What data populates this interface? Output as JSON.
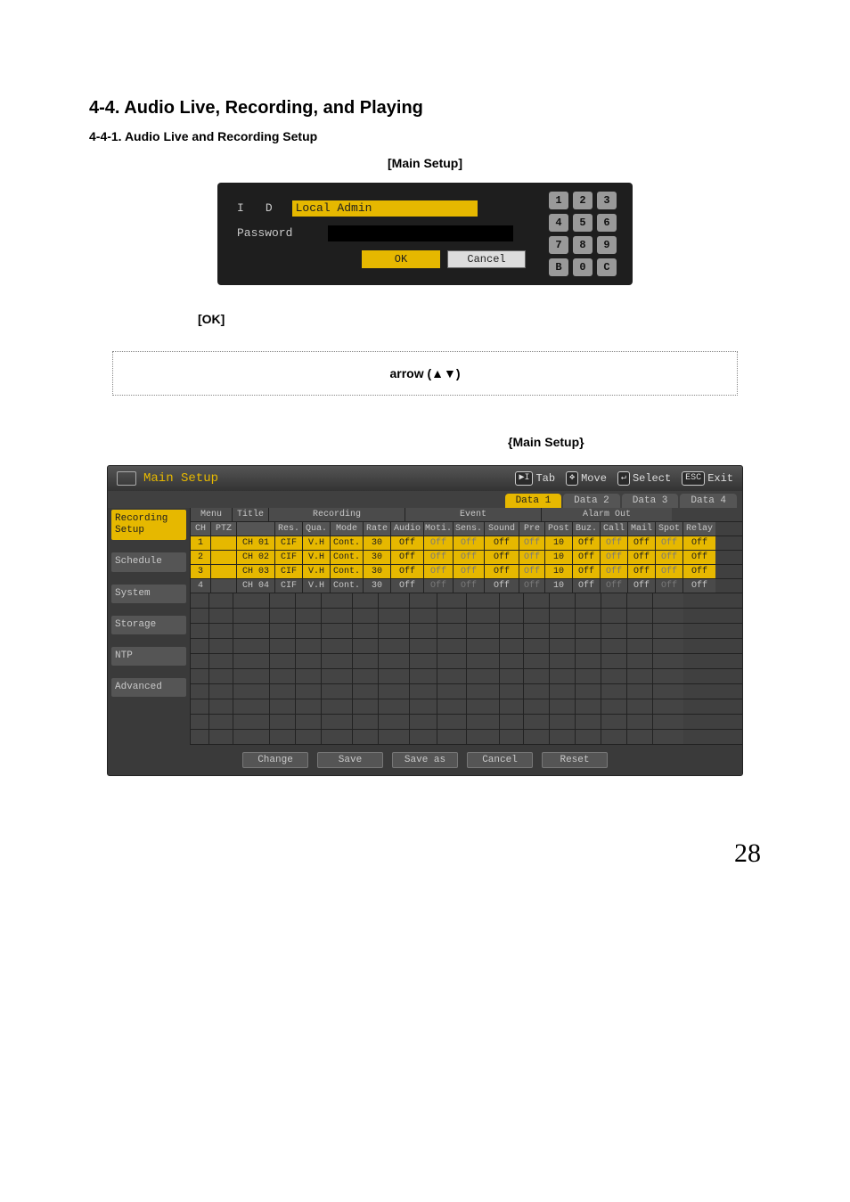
{
  "page": {
    "section_title": "4-4. Audio Live, Recording, and Playing",
    "subsection_title": "4-4-1. Audio Live and Recording Setup",
    "main_setup_caption": "[Main Setup]",
    "ok_label": "[OK]",
    "arrow_text": "arrow (▲▼)",
    "main_setup_label": "{Main Setup}",
    "page_number": "28"
  },
  "login": {
    "id_letter_1": "I",
    "id_letter_2": "D",
    "id_value": "Local Admin",
    "password_label": "Password",
    "ok_button": "OK",
    "cancel_button": "Cancel",
    "keys": [
      "1",
      "2",
      "3",
      "4",
      "5",
      "6",
      "7",
      "8",
      "9",
      "B",
      "0",
      "C"
    ],
    "accent_color": "#e6b800",
    "panel_bg": "#1e1e1e"
  },
  "setup": {
    "title": "Main Setup",
    "hints": {
      "tab": "Tab",
      "move": "Move",
      "select": "Select",
      "exit": "Exit",
      "esc_key": "ESC"
    },
    "data_tabs": [
      "Data 1",
      "Data 2",
      "Data 3",
      "Data 4"
    ],
    "active_data_tab": 0,
    "side_nav": [
      "Recording Setup",
      "Schedule",
      "System",
      "Storage",
      "NTP",
      "Advanced"
    ],
    "active_side": 0,
    "group_headers": {
      "menu": "Menu",
      "title": "Title",
      "recording": "Recording",
      "event": "Event",
      "alarm_out": "Alarm Out"
    },
    "sub_menu": {
      "ch": "CH",
      "ptz": "PTZ"
    },
    "columns": [
      "Res.",
      "Qua.",
      "Mode",
      "Rate",
      "Audio",
      "Moti.",
      "Sens.",
      "Sound",
      "Pre",
      "Post",
      "Buz.",
      "Call",
      "Mail",
      "Spot",
      "Relay"
    ],
    "rows": [
      {
        "ch": "1",
        "ptz": "",
        "title": "CH 01",
        "res": "CIF",
        "qua": "V.H",
        "mode": "Cont.",
        "rate": "30",
        "audio": "Off",
        "moti": "Off",
        "sens": "Off",
        "sound": "Off",
        "pre": "Off",
        "post": "10",
        "buz": "Off",
        "call": "Off",
        "mail": "Off",
        "spot": "Off",
        "relay": "Off",
        "sel": true
      },
      {
        "ch": "2",
        "ptz": "",
        "title": "CH 02",
        "res": "CIF",
        "qua": "V.H",
        "mode": "Cont.",
        "rate": "30",
        "audio": "Off",
        "moti": "Off",
        "sens": "Off",
        "sound": "Off",
        "pre": "Off",
        "post": "10",
        "buz": "Off",
        "call": "Off",
        "mail": "Off",
        "spot": "Off",
        "relay": "Off",
        "sel": true
      },
      {
        "ch": "3",
        "ptz": "",
        "title": "CH 03",
        "res": "CIF",
        "qua": "V.H",
        "mode": "Cont.",
        "rate": "30",
        "audio": "Off",
        "moti": "Off",
        "sens": "Off",
        "sound": "Off",
        "pre": "Off",
        "post": "10",
        "buz": "Off",
        "call": "Off",
        "mail": "Off",
        "spot": "Off",
        "relay": "Off",
        "sel": true
      },
      {
        "ch": "4",
        "ptz": "",
        "title": "CH 04",
        "res": "CIF",
        "qua": "V.H",
        "mode": "Cont.",
        "rate": "30",
        "audio": "Off",
        "moti": "Off",
        "sens": "Off",
        "sound": "Off",
        "pre": "Off",
        "post": "10",
        "buz": "Off",
        "call": "Off",
        "mail": "Off",
        "spot": "Off",
        "relay": "Off",
        "sel": false
      }
    ],
    "dim_columns": [
      "moti",
      "sens",
      "pre",
      "call",
      "spot"
    ],
    "footer_buttons": [
      "Change",
      "Save",
      "Save as",
      "Cancel",
      "Reset"
    ],
    "empty_rows": 10,
    "accent_color": "#e6b800",
    "panel_bg": "#404040"
  }
}
